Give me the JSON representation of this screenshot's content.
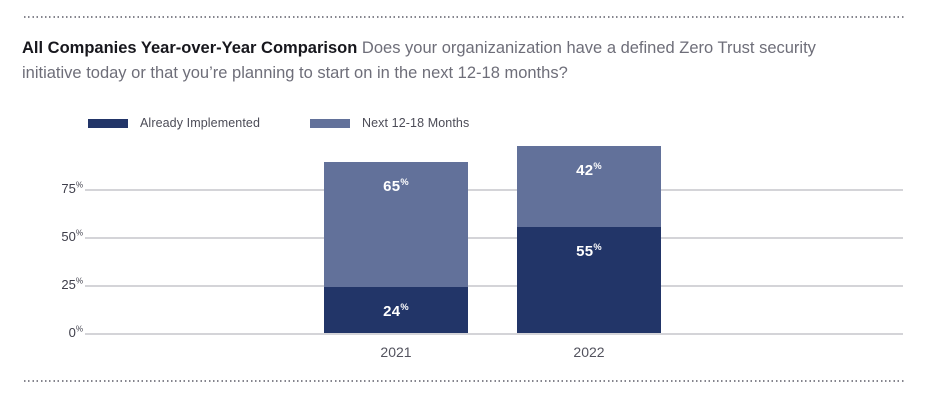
{
  "header": {
    "title_bold": "All Companies Year-over-Year Comparison",
    "title_question": "Does your organizanization have a defined Zero Trust security initiative today or that you’re planning to start on in the next 12-18 months?"
  },
  "chart_data": {
    "type": "bar",
    "stacked": true,
    "title": "All Companies Year-over-Year Comparison",
    "categories": [
      "2021",
      "2022"
    ],
    "series": [
      {
        "name": "Already Implemented",
        "color": "#223568",
        "values": [
          24,
          55
        ]
      },
      {
        "name": "Next 12-18 Months",
        "color": "#62719a",
        "values": [
          65,
          42
        ]
      }
    ],
    "bar_totals": [
      89,
      97
    ],
    "value_suffix": "%",
    "ytick_suffix": "%",
    "yticks": [
      0,
      25,
      50,
      75
    ],
    "ylim": [
      0,
      100
    ],
    "grid": true,
    "legend_position": "top-left",
    "gridline_color": "#d4d4d8",
    "label_text_color": "#ffffff"
  }
}
